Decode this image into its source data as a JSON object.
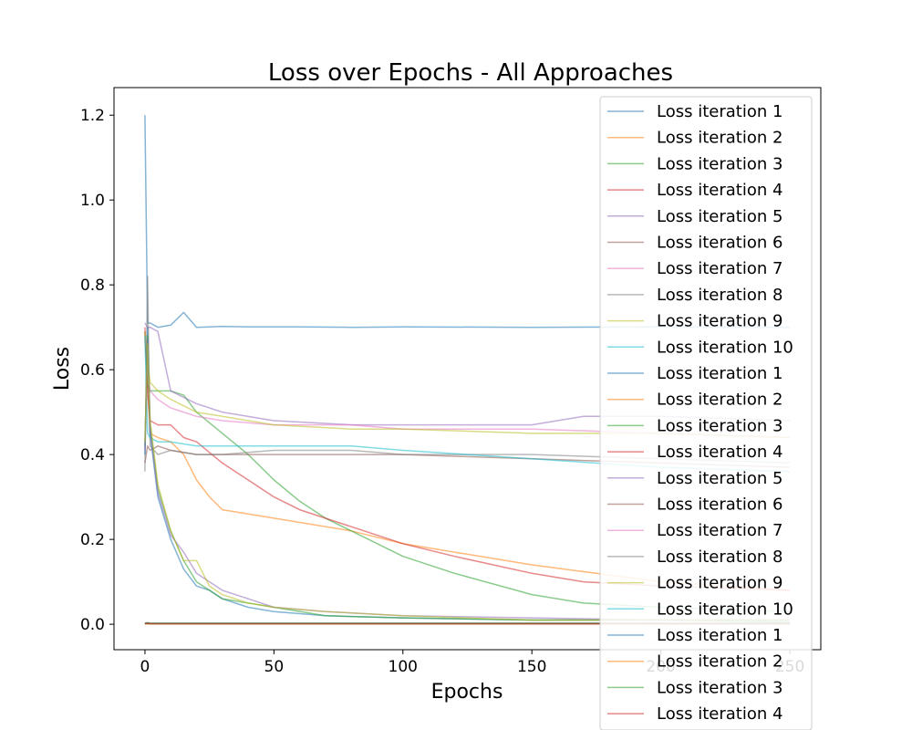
{
  "chart_data": {
    "type": "line",
    "title": "Loss over Epochs - All Approaches",
    "xlabel": "Epochs",
    "ylabel": "Loss",
    "xlim": [
      -12,
      262
    ],
    "ylim": [
      -0.06,
      1.265
    ],
    "xticks": [
      0,
      50,
      100,
      150,
      200,
      250
    ],
    "xtick_labels": [
      "0",
      "50",
      "100",
      "150",
      "200",
      "250"
    ],
    "yticks": [
      0.0,
      0.2,
      0.4,
      0.6,
      0.8,
      1.0,
      1.2
    ],
    "ytick_labels": [
      "0.0",
      "0.2",
      "0.4",
      "0.6",
      "0.8",
      "1.0",
      "1.2"
    ],
    "grid": false,
    "legend_location": "upper right",
    "line_alpha": 0.55,
    "series": [
      {
        "name": "Loss iteration 1",
        "color": "#1f77b4",
        "x": [
          0,
          1,
          2,
          5,
          10,
          15,
          20,
          30,
          40,
          60,
          80,
          100,
          150,
          200,
          250
        ],
        "y": [
          1.2,
          0.71,
          0.71,
          0.7,
          0.705,
          0.735,
          0.7,
          0.702,
          0.701,
          0.701,
          0.7,
          0.701,
          0.7,
          0.701,
          0.7
        ]
      },
      {
        "name": "Loss iteration 2",
        "color": "#ff7f0e",
        "x": [
          0,
          1,
          2,
          5,
          10,
          15,
          20,
          25,
          30,
          40,
          50,
          60,
          80,
          100,
          150,
          200,
          250
        ],
        "y": [
          0.7,
          0.55,
          0.45,
          0.44,
          0.43,
          0.4,
          0.34,
          0.3,
          0.27,
          0.26,
          0.25,
          0.24,
          0.22,
          0.19,
          0.14,
          0.1,
          0.08
        ]
      },
      {
        "name": "Loss iteration 3",
        "color": "#2ca02c",
        "x": [
          0,
          1,
          2,
          5,
          10,
          15,
          20,
          30,
          40,
          50,
          60,
          70,
          80,
          100,
          120,
          150,
          170,
          200,
          250
        ],
        "y": [
          0.69,
          0.56,
          0.55,
          0.55,
          0.55,
          0.54,
          0.5,
          0.45,
          0.4,
          0.34,
          0.29,
          0.25,
          0.22,
          0.16,
          0.12,
          0.07,
          0.05,
          0.04,
          0.03
        ]
      },
      {
        "name": "Loss iteration 4",
        "color": "#d62728",
        "x": [
          0,
          1,
          2,
          5,
          10,
          15,
          20,
          30,
          40,
          50,
          60,
          80,
          100,
          120,
          150,
          170,
          200,
          250
        ],
        "y": [
          0.69,
          0.55,
          0.48,
          0.47,
          0.47,
          0.44,
          0.43,
          0.38,
          0.34,
          0.3,
          0.27,
          0.23,
          0.19,
          0.16,
          0.12,
          0.1,
          0.09,
          0.08
        ]
      },
      {
        "name": "Loss iteration 5",
        "color": "#9467bd",
        "x": [
          0,
          1,
          2,
          5,
          10,
          20,
          30,
          50,
          80,
          100,
          150,
          170,
          200,
          250
        ],
        "y": [
          0.71,
          0.7,
          0.7,
          0.69,
          0.55,
          0.52,
          0.5,
          0.48,
          0.47,
          0.47,
          0.47,
          0.49,
          0.49,
          0.48
        ]
      },
      {
        "name": "Loss iteration 6",
        "color": "#8c564b",
        "x": [
          0,
          1,
          2,
          5,
          10,
          20,
          30,
          50,
          80,
          100,
          150,
          200,
          250
        ],
        "y": [
          0.38,
          0.42,
          0.41,
          0.42,
          0.41,
          0.4,
          0.4,
          0.4,
          0.4,
          0.4,
          0.39,
          0.38,
          0.37
        ]
      },
      {
        "name": "Loss iteration 7",
        "color": "#e377c2",
        "x": [
          0,
          1,
          2,
          5,
          10,
          20,
          30,
          50,
          80,
          100,
          150,
          200,
          250
        ],
        "y": [
          0.7,
          0.6,
          0.55,
          0.53,
          0.51,
          0.49,
          0.48,
          0.47,
          0.47,
          0.46,
          0.46,
          0.45,
          0.44
        ]
      },
      {
        "name": "Loss iteration 8",
        "color": "#7f7f7f",
        "x": [
          0,
          1,
          2,
          5,
          10,
          20,
          30,
          50,
          80,
          100,
          150,
          200,
          250
        ],
        "y": [
          0.36,
          0.82,
          0.42,
          0.4,
          0.41,
          0.4,
          0.4,
          0.41,
          0.41,
          0.4,
          0.4,
          0.39,
          0.38
        ]
      },
      {
        "name": "Loss iteration 9",
        "color": "#bcbd22",
        "x": [
          0,
          1,
          2,
          5,
          10,
          20,
          30,
          50,
          80,
          100,
          150,
          200,
          250
        ],
        "y": [
          0.69,
          0.62,
          0.57,
          0.55,
          0.53,
          0.5,
          0.49,
          0.47,
          0.46,
          0.46,
          0.45,
          0.45,
          0.44
        ]
      },
      {
        "name": "Loss iteration 10",
        "color": "#17becf",
        "x": [
          0,
          1,
          2,
          5,
          10,
          20,
          30,
          50,
          80,
          100,
          150,
          200,
          250
        ],
        "y": [
          0.68,
          0.45,
          0.44,
          0.43,
          0.43,
          0.42,
          0.42,
          0.42,
          0.42,
          0.41,
          0.39,
          0.37,
          0.36
        ]
      },
      {
        "name": "Loss iteration 1",
        "color": "#1f77b4",
        "x": [
          0,
          1,
          2,
          5,
          10,
          15,
          20,
          25,
          30,
          40,
          50,
          70,
          100,
          150,
          200,
          250
        ],
        "y": [
          0.4,
          0.7,
          0.45,
          0.3,
          0.2,
          0.13,
          0.09,
          0.08,
          0.06,
          0.04,
          0.03,
          0.02,
          0.015,
          0.01,
          0.01,
          0.01
        ]
      },
      {
        "name": "Loss iteration 2",
        "color": "#ff7f0e",
        "x": [
          0,
          1,
          2,
          5,
          10,
          15,
          20,
          30,
          50,
          100,
          150,
          200,
          250
        ],
        "y": [
          0.001,
          0.001,
          0.001,
          0.001,
          0.001,
          0.001,
          0.001,
          0.001,
          0.001,
          0.001,
          0.001,
          0.001,
          0.001
        ]
      },
      {
        "name": "Loss iteration 3",
        "color": "#2ca02c",
        "x": [
          0,
          1,
          2,
          5,
          10,
          15,
          20,
          25,
          30,
          40,
          50,
          70,
          100,
          150,
          200,
          250
        ],
        "y": [
          0.42,
          0.68,
          0.47,
          0.32,
          0.22,
          0.15,
          0.1,
          0.08,
          0.06,
          0.05,
          0.04,
          0.02,
          0.015,
          0.01,
          0.01,
          0.005
        ]
      },
      {
        "name": "Loss iteration 4",
        "color": "#d62728",
        "x": [
          0,
          1,
          2,
          5,
          10,
          20,
          50,
          100,
          150,
          200,
          250
        ],
        "y": [
          0.002,
          0.003,
          0.002,
          0.002,
          0.002,
          0.002,
          0.002,
          0.002,
          0.002,
          0.002,
          0.002
        ]
      },
      {
        "name": "Loss iteration 5",
        "color": "#9467bd",
        "x": [
          0,
          1,
          2,
          5,
          10,
          15,
          20,
          30,
          40,
          50,
          70,
          100,
          150,
          200,
          250
        ],
        "y": [
          0.41,
          0.67,
          0.46,
          0.31,
          0.21,
          0.17,
          0.12,
          0.08,
          0.06,
          0.04,
          0.03,
          0.02,
          0.015,
          0.01,
          0.01
        ]
      },
      {
        "name": "Loss iteration 6",
        "color": "#8c564b",
        "x": [
          0,
          1,
          2,
          5,
          10,
          20,
          50,
          100,
          150,
          200,
          250
        ],
        "y": [
          0.001,
          0.002,
          0.001,
          0.001,
          0.001,
          0.001,
          0.001,
          0.001,
          0.001,
          0.001,
          0.001
        ]
      },
      {
        "name": "Loss iteration 7",
        "color": "#e377c2",
        "x": [
          0,
          1,
          2,
          5,
          10,
          20,
          50,
          100,
          150,
          200,
          250
        ],
        "y": [
          0.002,
          0.003,
          0.002,
          0.002,
          0.002,
          0.002,
          0.002,
          0.002,
          0.002,
          0.002,
          0.002
        ]
      },
      {
        "name": "Loss iteration 8",
        "color": "#7f7f7f",
        "x": [
          0,
          1,
          2,
          5,
          10,
          20,
          50,
          100,
          150,
          200,
          250
        ],
        "y": [
          0.003,
          0.004,
          0.003,
          0.003,
          0.003,
          0.003,
          0.003,
          0.003,
          0.003,
          0.003,
          0.003
        ]
      },
      {
        "name": "Loss iteration 9",
        "color": "#bcbd22",
        "x": [
          0,
          1,
          2,
          5,
          10,
          15,
          20,
          25,
          30,
          40,
          50,
          70,
          100,
          150,
          200,
          250
        ],
        "y": [
          0.43,
          0.66,
          0.48,
          0.33,
          0.22,
          0.15,
          0.15,
          0.09,
          0.07,
          0.05,
          0.04,
          0.03,
          0.02,
          0.01,
          0.01,
          0.01
        ]
      },
      {
        "name": "Loss iteration 10",
        "color": "#17becf",
        "x": [
          0,
          1,
          2,
          5,
          10,
          20,
          50,
          100,
          150,
          200,
          250
        ],
        "y": [
          0.001,
          0.002,
          0.001,
          0.001,
          0.001,
          0.001,
          0.001,
          0.001,
          0.001,
          0.001,
          0.001
        ]
      },
      {
        "name": "Loss iteration 1",
        "color": "#1f77b4",
        "x": [
          0,
          1,
          2,
          5,
          10,
          20,
          50,
          100,
          150,
          200,
          250
        ],
        "y": [
          0.002,
          0.003,
          0.002,
          0.002,
          0.002,
          0.002,
          0.002,
          0.002,
          0.002,
          0.002,
          0.002
        ]
      },
      {
        "name": "Loss iteration 2",
        "color": "#ff7f0e",
        "x": [
          0,
          1,
          2,
          5,
          10,
          20,
          50,
          100,
          150,
          200,
          250
        ],
        "y": [
          0.001,
          0.002,
          0.001,
          0.001,
          0.001,
          0.001,
          0.001,
          0.001,
          0.001,
          0.001,
          0.001
        ]
      },
      {
        "name": "Loss iteration 3",
        "color": "#2ca02c",
        "x": [
          0,
          1,
          2,
          5,
          10,
          20,
          50,
          100,
          150,
          200,
          250
        ],
        "y": [
          0.002,
          0.003,
          0.002,
          0.002,
          0.002,
          0.002,
          0.002,
          0.002,
          0.002,
          0.002,
          0.002
        ]
      },
      {
        "name": "Loss iteration 4",
        "color": "#d62728",
        "x": [
          0,
          1,
          2,
          5,
          10,
          20,
          50,
          100,
          150,
          200,
          250
        ],
        "y": [
          0.001,
          0.002,
          0.001,
          0.001,
          0.001,
          0.001,
          0.001,
          0.001,
          0.001,
          0.001,
          0.001
        ]
      }
    ]
  }
}
